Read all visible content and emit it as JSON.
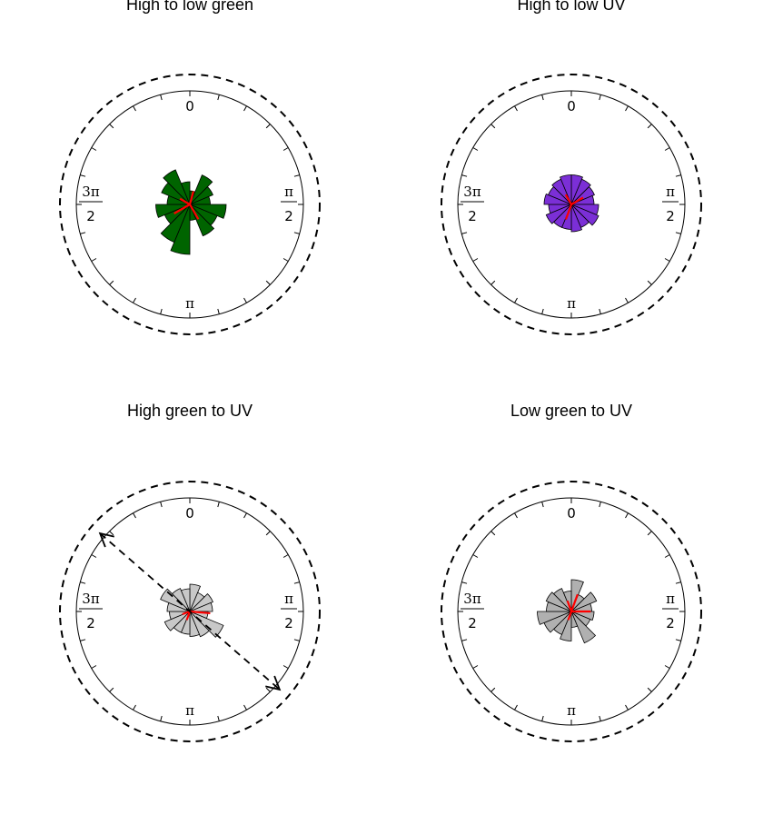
{
  "chart_data": [
    {
      "type": "rose",
      "title": "High to low green",
      "bar_color": "#006400",
      "mean_vector_color": "#ff0000",
      "axis_labels": {
        "top": "0",
        "right_num": "π",
        "right_den": "2",
        "bottom": "π",
        "left_num": "3π",
        "left_den": "2"
      },
      "bins": 16,
      "bin_radii": [
        0.12,
        0.28,
        0.22,
        0.18,
        0.32,
        0.26,
        0.3,
        0.14,
        0.44,
        0.36,
        0.24,
        0.3,
        0.2,
        0.27,
        0.33,
        0.2
      ],
      "mean_vectors": [
        {
          "angle_deg": 15,
          "length": 0.12
        },
        {
          "angle_deg": 150,
          "length": 0.15
        },
        {
          "angle_deg": 240,
          "length": 0.16
        },
        {
          "angle_deg": 300,
          "length": 0.1
        }
      ],
      "arrow": null
    },
    {
      "type": "rose",
      "title": "High to low UV",
      "bar_color": "#7b2fd6",
      "mean_vector_color": "#ff0000",
      "axis_labels": {
        "top": "0",
        "right_num": "π",
        "right_den": "2",
        "bottom": "π",
        "left_num": "3π",
        "left_den": "2"
      },
      "bins": 16,
      "bin_radii": [
        0.26,
        0.24,
        0.22,
        0.2,
        0.24,
        0.26,
        0.22,
        0.24,
        0.22,
        0.22,
        0.24,
        0.2,
        0.24,
        0.22,
        0.24,
        0.26
      ],
      "mean_vectors": [
        {
          "angle_deg": 60,
          "length": 0.12
        },
        {
          "angle_deg": 200,
          "length": 0.14
        },
        {
          "angle_deg": 330,
          "length": 0.1
        }
      ],
      "arrow": null
    },
    {
      "type": "rose",
      "title": "High green to UV",
      "bar_color": "#c8c8c8",
      "mean_vector_color": "#ff0000",
      "axis_labels": {
        "top": "0",
        "right_num": "π",
        "right_den": "2",
        "bottom": "π",
        "left_num": "3π",
        "left_den": "2"
      },
      "bins": 16,
      "bin_radii": [
        0.24,
        0.18,
        0.22,
        0.2,
        0.16,
        0.32,
        0.24,
        0.22,
        0.2,
        0.2,
        0.24,
        0.18,
        0.2,
        0.28,
        0.22,
        0.2
      ],
      "mean_vectors": [
        {
          "angle_deg": 95,
          "length": 0.18
        },
        {
          "angle_deg": 200,
          "length": 0.08
        },
        {
          "angle_deg": 250,
          "length": 0.07
        }
      ],
      "arrow": {
        "angle_deg": 131,
        "length_ratio": 1.0
      }
    },
    {
      "type": "rose",
      "title": "Low green to UV",
      "bar_color": "#b0b0b0",
      "mean_vector_color": "#ff0000",
      "axis_labels": {
        "top": "0",
        "right_num": "π",
        "right_den": "2",
        "bottom": "π",
        "left_num": "3π",
        "left_den": "2"
      },
      "bins": 16,
      "bin_radii": [
        0.28,
        0.16,
        0.24,
        0.18,
        0.2,
        0.18,
        0.3,
        0.14,
        0.26,
        0.22,
        0.26,
        0.3,
        0.22,
        0.24,
        0.22,
        0.18
      ],
      "mean_vectors": [
        {
          "angle_deg": 20,
          "length": 0.16
        },
        {
          "angle_deg": 90,
          "length": 0.17
        },
        {
          "angle_deg": 200,
          "length": 0.08
        },
        {
          "angle_deg": 340,
          "length": 0.1
        }
      ],
      "arrow": null
    }
  ]
}
